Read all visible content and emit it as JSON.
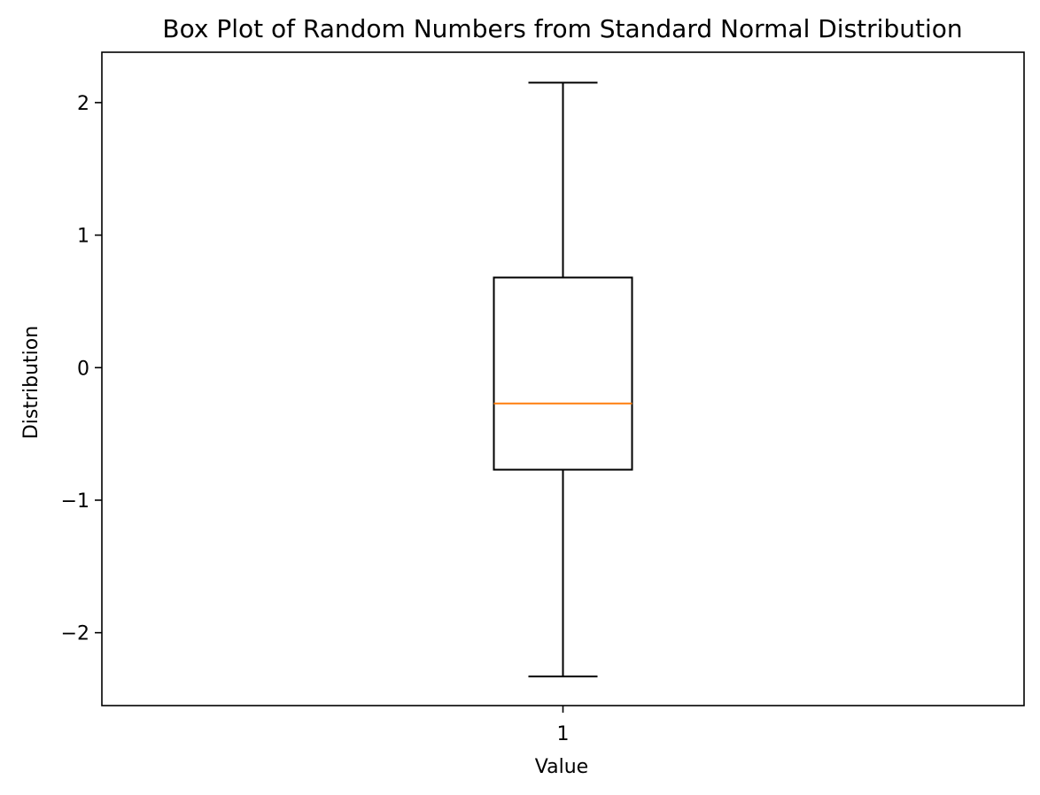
{
  "chart_data": {
    "type": "box",
    "title": "Box Plot of Random Numbers from Standard Normal Distribution",
    "xlabel": "Value",
    "ylabel": "Distribution",
    "categories": [
      "1"
    ],
    "boxes": [
      {
        "category": "1",
        "whisker_low": -2.33,
        "q1": -0.77,
        "median": -0.27,
        "q3": 0.68,
        "whisker_high": 2.15
      }
    ],
    "ylim": [
      -2.55,
      2.38
    ],
    "yticks": [
      -2,
      -1,
      0,
      1,
      2
    ],
    "ytick_labels": [
      "−2",
      "−1",
      "0",
      "1",
      "2"
    ],
    "grid": false,
    "colors": {
      "box": "#000000",
      "median": "#ff7f0e",
      "whisker": "#000000"
    }
  }
}
